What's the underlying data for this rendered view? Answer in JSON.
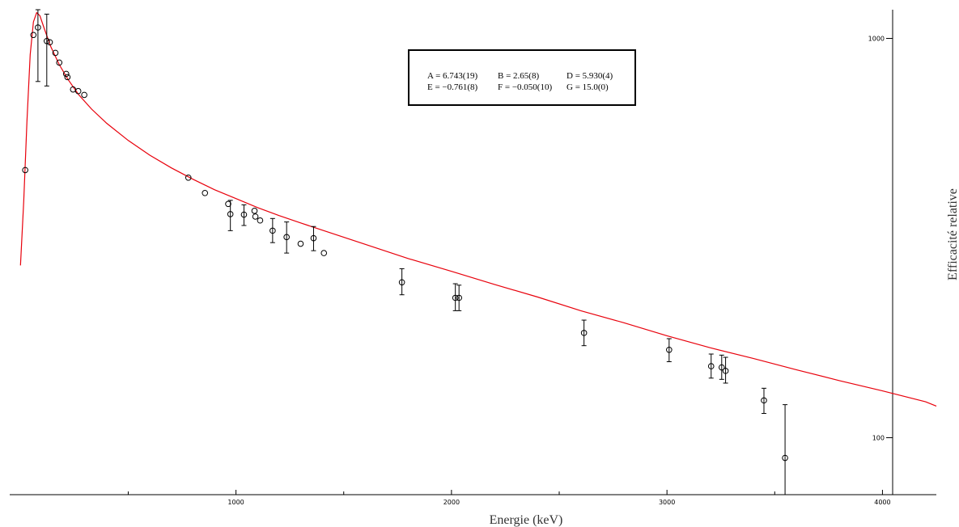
{
  "chart_data": {
    "type": "scatter",
    "title": "",
    "xlabel": "Energie (keV)",
    "ylabel": "Efficacité relative",
    "xlim": [
      -50,
      4250
    ],
    "ylim": [
      72,
      1180
    ],
    "yscale": "log",
    "x_ticks_major": [
      1000,
      2000,
      3000,
      4000
    ],
    "x_ticks_minor": [
      500,
      1500,
      2500,
      3500
    ],
    "y_ticks_labeled": [
      100,
      1000
    ],
    "fit_box": {
      "lines": [
        [
          "A = 6.743(19)",
          "B = 2.65(8)",
          "D = 5.930(4)"
        ],
        [
          "E = −0.761(8)",
          "F = −0.050(10)",
          "G = 15.0(0)"
        ]
      ]
    },
    "fit_curve_color": "#e8000b",
    "series": [
      {
        "kind": "measured",
        "points": [
          {
            "x": 22,
            "y": 468
          },
          {
            "x": 60,
            "y": 1020
          },
          {
            "x": 81,
            "y": 1065,
            "lo": 780,
            "hi": 1180
          },
          {
            "x": 122,
            "y": 985,
            "lo": 760,
            "hi": 1150
          },
          {
            "x": 136,
            "y": 978
          },
          {
            "x": 162,
            "y": 920
          },
          {
            "x": 180,
            "y": 870
          },
          {
            "x": 212,
            "y": 815
          },
          {
            "x": 218,
            "y": 800
          },
          {
            "x": 244,
            "y": 745
          },
          {
            "x": 268,
            "y": 738
          },
          {
            "x": 296,
            "y": 722
          },
          {
            "x": 779,
            "y": 448
          },
          {
            "x": 856,
            "y": 410
          },
          {
            "x": 964,
            "y": 385
          },
          {
            "x": 974,
            "y": 363,
            "lo": 330,
            "hi": 393
          },
          {
            "x": 1037,
            "y": 362,
            "lo": 340,
            "hi": 383
          },
          {
            "x": 1086,
            "y": 370
          },
          {
            "x": 1090,
            "y": 358
          },
          {
            "x": 1112,
            "y": 350
          },
          {
            "x": 1170,
            "y": 330,
            "lo": 308,
            "hi": 354
          },
          {
            "x": 1235,
            "y": 318,
            "lo": 290,
            "hi": 347
          },
          {
            "x": 1300,
            "y": 306
          },
          {
            "x": 1360,
            "y": 316,
            "lo": 294,
            "hi": 338
          },
          {
            "x": 1408,
            "y": 290
          },
          {
            "x": 1770,
            "y": 245,
            "lo": 228,
            "hi": 265
          },
          {
            "x": 2018,
            "y": 224,
            "lo": 208,
            "hi": 243
          },
          {
            "x": 2035,
            "y": 224,
            "lo": 208,
            "hi": 241
          },
          {
            "x": 2615,
            "y": 183,
            "lo": 170,
            "hi": 197
          },
          {
            "x": 3010,
            "y": 166,
            "lo": 155,
            "hi": 177
          },
          {
            "x": 3205,
            "y": 151,
            "lo": 141,
            "hi": 162
          },
          {
            "x": 3254,
            "y": 150,
            "lo": 140,
            "hi": 161
          },
          {
            "x": 3272,
            "y": 147,
            "lo": 137,
            "hi": 159
          },
          {
            "x": 3450,
            "y": 124,
            "lo": 115,
            "hi": 133
          },
          {
            "x": 3548,
            "y": 89,
            "lo": 70,
            "hi": 121
          }
        ]
      },
      {
        "kind": "fit",
        "color": "#e8000b",
        "x": [
          0,
          15,
          30,
          45,
          60,
          75,
          90,
          110,
          140,
          180,
          220,
          270,
          330,
          400,
          500,
          600,
          700,
          800,
          900,
          1000,
          1100,
          1200,
          1300,
          1400,
          1600,
          1800,
          2000,
          2200,
          2400,
          2600,
          2800,
          3000,
          3200,
          3400,
          3600,
          3800,
          4000,
          4200,
          4250
        ],
        "y": [
          270,
          390,
          620,
          910,
          1100,
          1160,
          1140,
          1060,
          955,
          860,
          790,
          723,
          665,
          613,
          555,
          510,
          474,
          444,
          418,
          397,
          377,
          360,
          345,
          331,
          305,
          281,
          261,
          242,
          225,
          208,
          194,
          180,
          168,
          158,
          148,
          139,
          131,
          123,
          120
        ]
      }
    ]
  }
}
